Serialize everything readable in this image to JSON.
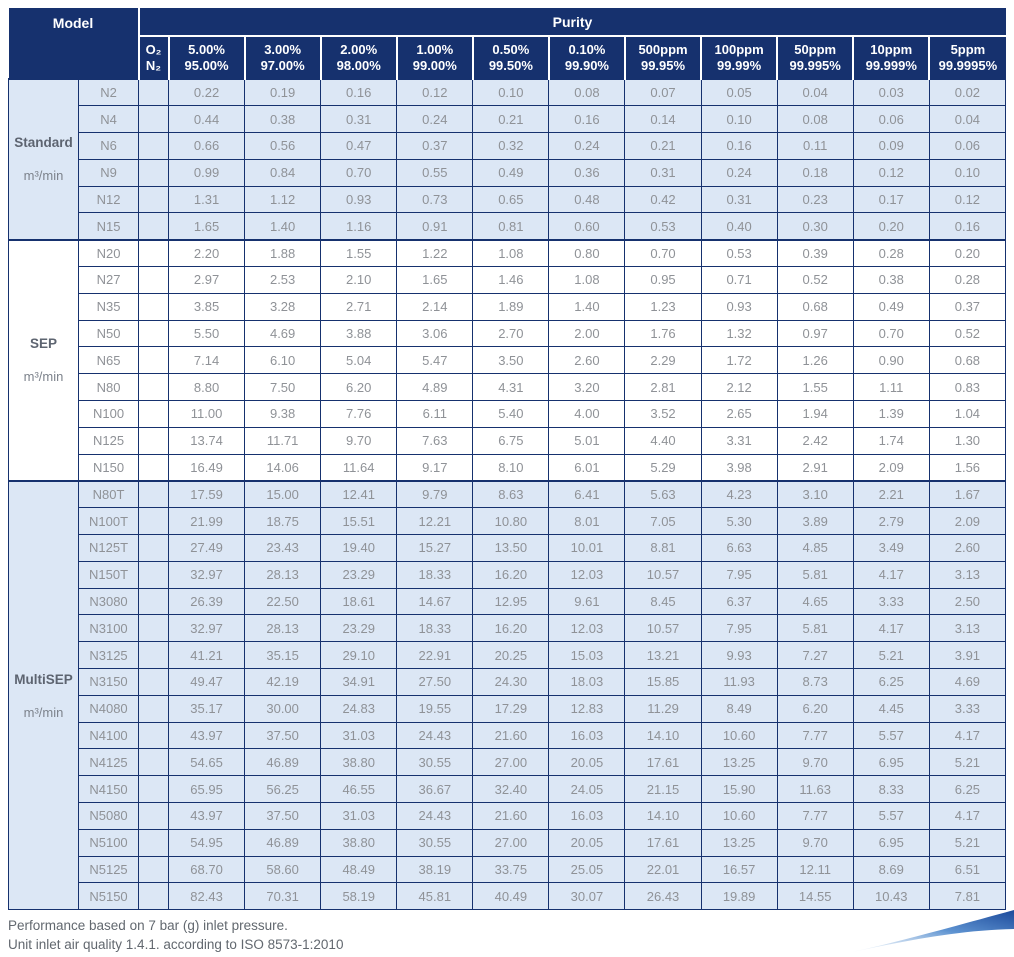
{
  "header": {
    "model_label": "Model",
    "purity_label": "Purity",
    "gas_labels": [
      "O₂",
      "N₂"
    ],
    "columns": [
      {
        "o2": "5.00%",
        "n2": "95.00%"
      },
      {
        "o2": "3.00%",
        "n2": "97.00%"
      },
      {
        "o2": "2.00%",
        "n2": "98.00%"
      },
      {
        "o2": "1.00%",
        "n2": "99.00%"
      },
      {
        "o2": "0.50%",
        "n2": "99.50%"
      },
      {
        "o2": "0.10%",
        "n2": "99.90%"
      },
      {
        "o2": "500ppm",
        "n2": "99.95%"
      },
      {
        "o2": "100ppm",
        "n2": "99.99%"
      },
      {
        "o2": "50ppm",
        "n2": "99.995%"
      },
      {
        "o2": "10ppm",
        "n2": "99.999%"
      },
      {
        "o2": "5ppm",
        "n2": "99.9995%"
      }
    ]
  },
  "groups": [
    {
      "name": "Standard",
      "unit": "m³/min",
      "shaded": true,
      "rows": [
        {
          "model": "N2",
          "values": [
            "0.22",
            "0.19",
            "0.16",
            "0.12",
            "0.10",
            "0.08",
            "0.07",
            "0.05",
            "0.04",
            "0.03",
            "0.02"
          ]
        },
        {
          "model": "N4",
          "values": [
            "0.44",
            "0.38",
            "0.31",
            "0.24",
            "0.21",
            "0.16",
            "0.14",
            "0.10",
            "0.08",
            "0.06",
            "0.04"
          ]
        },
        {
          "model": "N6",
          "values": [
            "0.66",
            "0.56",
            "0.47",
            "0.37",
            "0.32",
            "0.24",
            "0.21",
            "0.16",
            "0.11",
            "0.09",
            "0.06"
          ]
        },
        {
          "model": "N9",
          "values": [
            "0.99",
            "0.84",
            "0.70",
            "0.55",
            "0.49",
            "0.36",
            "0.31",
            "0.24",
            "0.18",
            "0.12",
            "0.10"
          ]
        },
        {
          "model": "N12",
          "values": [
            "1.31",
            "1.12",
            "0.93",
            "0.73",
            "0.65",
            "0.48",
            "0.42",
            "0.31",
            "0.23",
            "0.17",
            "0.12"
          ]
        },
        {
          "model": "N15",
          "values": [
            "1.65",
            "1.40",
            "1.16",
            "0.91",
            "0.81",
            "0.60",
            "0.53",
            "0.40",
            "0.30",
            "0.20",
            "0.16"
          ]
        }
      ]
    },
    {
      "name": "SEP",
      "unit": "m³/min",
      "shaded": false,
      "rows": [
        {
          "model": "N20",
          "values": [
            "2.20",
            "1.88",
            "1.55",
            "1.22",
            "1.08",
            "0.80",
            "0.70",
            "0.53",
            "0.39",
            "0.28",
            "0.20"
          ]
        },
        {
          "model": "N27",
          "values": [
            "2.97",
            "2.53",
            "2.10",
            "1.65",
            "1.46",
            "1.08",
            "0.95",
            "0.71",
            "0.52",
            "0.38",
            "0.28"
          ]
        },
        {
          "model": "N35",
          "values": [
            "3.85",
            "3.28",
            "2.71",
            "2.14",
            "1.89",
            "1.40",
            "1.23",
            "0.93",
            "0.68",
            "0.49",
            "0.37"
          ]
        },
        {
          "model": "N50",
          "values": [
            "5.50",
            "4.69",
            "3.88",
            "3.06",
            "2.70",
            "2.00",
            "1.76",
            "1.32",
            "0.97",
            "0.70",
            "0.52"
          ]
        },
        {
          "model": "N65",
          "values": [
            "7.14",
            "6.10",
            "5.04",
            "5.47",
            "3.50",
            "2.60",
            "2.29",
            "1.72",
            "1.26",
            "0.90",
            "0.68"
          ]
        },
        {
          "model": "N80",
          "values": [
            "8.80",
            "7.50",
            "6.20",
            "4.89",
            "4.31",
            "3.20",
            "2.81",
            "2.12",
            "1.55",
            "1.11",
            "0.83"
          ]
        },
        {
          "model": "N100",
          "values": [
            "11.00",
            "9.38",
            "7.76",
            "6.11",
            "5.40",
            "4.00",
            "3.52",
            "2.65",
            "1.94",
            "1.39",
            "1.04"
          ]
        },
        {
          "model": "N125",
          "values": [
            "13.74",
            "11.71",
            "9.70",
            "7.63",
            "6.75",
            "5.01",
            "4.40",
            "3.31",
            "2.42",
            "1.74",
            "1.30"
          ]
        },
        {
          "model": "N150",
          "values": [
            "16.49",
            "14.06",
            "11.64",
            "9.17",
            "8.10",
            "6.01",
            "5.29",
            "3.98",
            "2.91",
            "2.09",
            "1.56"
          ]
        }
      ]
    },
    {
      "name": "MultiSEP",
      "unit": "m³/min",
      "shaded": true,
      "rows": [
        {
          "model": "N80T",
          "values": [
            "17.59",
            "15.00",
            "12.41",
            "9.79",
            "8.63",
            "6.41",
            "5.63",
            "4.23",
            "3.10",
            "2.21",
            "1.67"
          ]
        },
        {
          "model": "N100T",
          "values": [
            "21.99",
            "18.75",
            "15.51",
            "12.21",
            "10.80",
            "8.01",
            "7.05",
            "5.30",
            "3.89",
            "2.79",
            "2.09"
          ]
        },
        {
          "model": "N125T",
          "values": [
            "27.49",
            "23.43",
            "19.40",
            "15.27",
            "13.50",
            "10.01",
            "8.81",
            "6.63",
            "4.85",
            "3.49",
            "2.60"
          ]
        },
        {
          "model": "N150T",
          "values": [
            "32.97",
            "28.13",
            "23.29",
            "18.33",
            "16.20",
            "12.03",
            "10.57",
            "7.95",
            "5.81",
            "4.17",
            "3.13"
          ]
        },
        {
          "model": "N3080",
          "values": [
            "26.39",
            "22.50",
            "18.61",
            "14.67",
            "12.95",
            "9.61",
            "8.45",
            "6.37",
            "4.65",
            "3.33",
            "2.50"
          ]
        },
        {
          "model": "N3100",
          "values": [
            "32.97",
            "28.13",
            "23.29",
            "18.33",
            "16.20",
            "12.03",
            "10.57",
            "7.95",
            "5.81",
            "4.17",
            "3.13"
          ]
        },
        {
          "model": "N3125",
          "values": [
            "41.21",
            "35.15",
            "29.10",
            "22.91",
            "20.25",
            "15.03",
            "13.21",
            "9.93",
            "7.27",
            "5.21",
            "3.91"
          ]
        },
        {
          "model": "N3150",
          "values": [
            "49.47",
            "42.19",
            "34.91",
            "27.50",
            "24.30",
            "18.03",
            "15.85",
            "11.93",
            "8.73",
            "6.25",
            "4.69"
          ]
        },
        {
          "model": "N4080",
          "values": [
            "35.17",
            "30.00",
            "24.83",
            "19.55",
            "17.29",
            "12.83",
            "11.29",
            "8.49",
            "6.20",
            "4.45",
            "3.33"
          ]
        },
        {
          "model": "N4100",
          "values": [
            "43.97",
            "37.50",
            "31.03",
            "24.43",
            "21.60",
            "16.03",
            "14.10",
            "10.60",
            "7.77",
            "5.57",
            "4.17"
          ]
        },
        {
          "model": "N4125",
          "values": [
            "54.65",
            "46.89",
            "38.80",
            "30.55",
            "27.00",
            "20.05",
            "17.61",
            "13.25",
            "9.70",
            "6.95",
            "5.21"
          ]
        },
        {
          "model": "N4150",
          "values": [
            "65.95",
            "56.25",
            "46.55",
            "36.67",
            "32.40",
            "24.05",
            "21.15",
            "15.90",
            "11.63",
            "8.33",
            "6.25"
          ]
        },
        {
          "model": "N5080",
          "values": [
            "43.97",
            "37.50",
            "31.03",
            "24.43",
            "21.60",
            "16.03",
            "14.10",
            "10.60",
            "7.77",
            "5.57",
            "4.17"
          ]
        },
        {
          "model": "N5100",
          "values": [
            "54.95",
            "46.89",
            "38.80",
            "30.55",
            "27.00",
            "20.05",
            "17.61",
            "13.25",
            "9.70",
            "6.95",
            "5.21"
          ]
        },
        {
          "model": "N5125",
          "values": [
            "68.70",
            "58.60",
            "48.49",
            "38.19",
            "33.75",
            "25.05",
            "22.01",
            "16.57",
            "12.11",
            "8.69",
            "6.51"
          ]
        },
        {
          "model": "N5150",
          "values": [
            "82.43",
            "70.31",
            "58.19",
            "45.81",
            "40.49",
            "30.07",
            "26.43",
            "19.89",
            "14.55",
            "10.43",
            "7.81"
          ]
        }
      ]
    }
  ],
  "footnotes": {
    "line1": "Performance based on 7 bar (g) inlet pressure.",
    "line2": "Unit inlet air quality 1.4.1. according to ISO 8573-1:2010"
  },
  "colors": {
    "header_bg": "#16316e",
    "row_tint": "#dce7f5",
    "row_plain": "#ffffff",
    "body_text": "#8f9297",
    "group_text": "#5d6470",
    "footer_text": "#62686f",
    "swoosh_dark": "#1c4a9b",
    "swoosh_mid": "#5e93d1",
    "swoosh_light": "#cfe1f2"
  }
}
